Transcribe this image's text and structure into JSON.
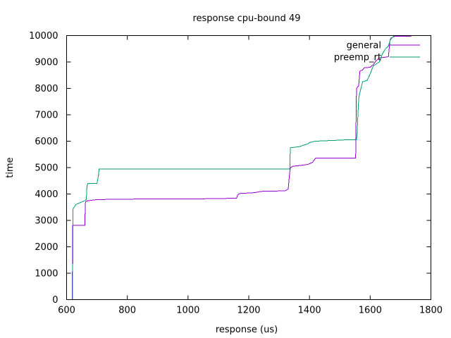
{
  "chart_data": {
    "type": "line",
    "title": "response cpu-bound 49",
    "xlabel": "response (us)",
    "ylabel": "time",
    "xlim": [
      600,
      1800
    ],
    "ylim": [
      0,
      10000
    ],
    "x_ticks": [
      600,
      800,
      1000,
      1200,
      1400,
      1600,
      1800
    ],
    "y_ticks": [
      0,
      1000,
      2000,
      3000,
      4000,
      5000,
      6000,
      7000,
      8000,
      9000,
      10000
    ],
    "grid": false,
    "legend_position": "top-right",
    "series": [
      {
        "name": "general",
        "color": "#9400d3",
        "points": [
          [
            618,
            0
          ],
          [
            619,
            1050
          ],
          [
            620,
            1050
          ],
          [
            620,
            2820
          ],
          [
            660,
            2820
          ],
          [
            662,
            3660
          ],
          [
            664,
            3730
          ],
          [
            680,
            3760
          ],
          [
            700,
            3790
          ],
          [
            850,
            3810
          ],
          [
            1050,
            3820
          ],
          [
            1160,
            3840
          ],
          [
            1163,
            3960
          ],
          [
            1170,
            4020
          ],
          [
            1220,
            4050
          ],
          [
            1240,
            4100
          ],
          [
            1320,
            4120
          ],
          [
            1330,
            4190
          ],
          [
            1335,
            4850
          ],
          [
            1338,
            5000
          ],
          [
            1345,
            5050
          ],
          [
            1370,
            5080
          ],
          [
            1395,
            5120
          ],
          [
            1410,
            5200
          ],
          [
            1420,
            5360
          ],
          [
            1552,
            5360
          ],
          [
            1553,
            6400
          ],
          [
            1555,
            8000
          ],
          [
            1562,
            8100
          ],
          [
            1566,
            8650
          ],
          [
            1575,
            8700
          ],
          [
            1580,
            8780
          ],
          [
            1600,
            8800
          ],
          [
            1610,
            8900
          ],
          [
            1620,
            9050
          ],
          [
            1625,
            9100
          ],
          [
            1630,
            9150
          ],
          [
            1660,
            9200
          ],
          [
            1665,
            9800
          ],
          [
            1668,
            9900
          ],
          [
            1680,
            9970
          ],
          [
            1735,
            9980
          ]
        ]
      },
      {
        "name": "preemp_rt",
        "color": "#009e73",
        "points": [
          [
            620,
            0
          ],
          [
            621,
            3430
          ],
          [
            625,
            3500
          ],
          [
            630,
            3600
          ],
          [
            640,
            3650
          ],
          [
            650,
            3700
          ],
          [
            660,
            3750
          ],
          [
            665,
            3800
          ],
          [
            667,
            4300
          ],
          [
            670,
            4400
          ],
          [
            700,
            4400
          ],
          [
            705,
            4700
          ],
          [
            707,
            4950
          ],
          [
            1040,
            4950
          ],
          [
            1335,
            4950
          ],
          [
            1337,
            5750
          ],
          [
            1370,
            5800
          ],
          [
            1380,
            5850
          ],
          [
            1395,
            5900
          ],
          [
            1400,
            5950
          ],
          [
            1418,
            6000
          ],
          [
            1480,
            6030
          ],
          [
            1520,
            6050
          ],
          [
            1555,
            6050
          ],
          [
            1557,
            6300
          ],
          [
            1560,
            7100
          ],
          [
            1562,
            7600
          ],
          [
            1565,
            7800
          ],
          [
            1575,
            8250
          ],
          [
            1590,
            8300
          ],
          [
            1600,
            8550
          ],
          [
            1605,
            8700
          ],
          [
            1610,
            8850
          ],
          [
            1630,
            9000
          ],
          [
            1640,
            9300
          ],
          [
            1650,
            9500
          ],
          [
            1660,
            9600
          ],
          [
            1665,
            9800
          ],
          [
            1670,
            9900
          ],
          [
            1680,
            10000
          ],
          [
            1750,
            10000
          ]
        ]
      }
    ]
  }
}
